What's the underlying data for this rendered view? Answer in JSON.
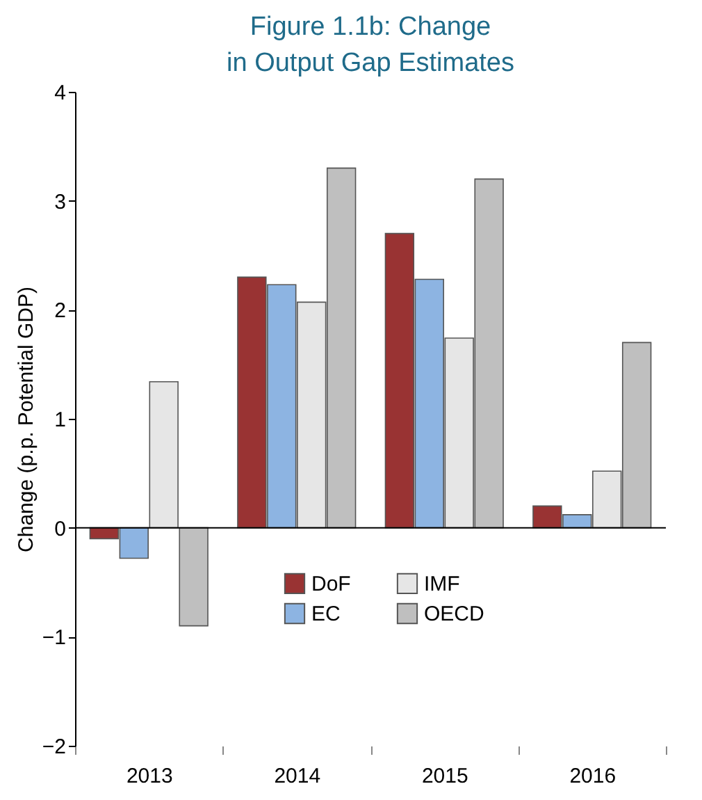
{
  "chart_data": {
    "type": "bar",
    "title": "Figure 1.1b: Change in Output Gap Estimates",
    "ylabel": "Change (p.p. Potential GDP)",
    "categories": [
      "2013",
      "2014",
      "2015",
      "2016"
    ],
    "series": [
      {
        "name": "DoF",
        "color": "#993333",
        "values": [
          -0.1,
          2.3,
          2.7,
          0.2
        ]
      },
      {
        "name": "EC",
        "color": "#8db4e2",
        "values": [
          -0.28,
          2.23,
          2.28,
          0.12
        ]
      },
      {
        "name": "IMF",
        "color": "#e6e6e6",
        "values": [
          1.34,
          2.07,
          1.74,
          0.52
        ]
      },
      {
        "name": "OECD",
        "color": "#bfbfbf",
        "values": [
          -0.9,
          3.3,
          3.2,
          1.7
        ]
      }
    ],
    "ylim": [
      -2,
      4
    ],
    "yticks": [
      -2,
      -1,
      0,
      1,
      2,
      3,
      4
    ],
    "ref_lines": [
      {
        "axis": "y",
        "value": 0,
        "color": "#000000"
      }
    ],
    "grid": false,
    "legend": "bottom"
  }
}
